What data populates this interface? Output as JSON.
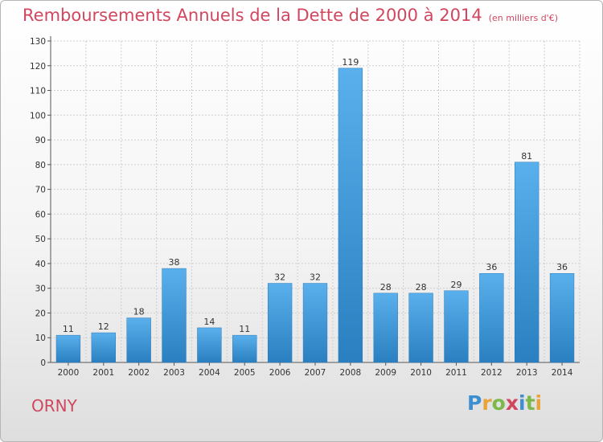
{
  "header": {
    "title": "Remboursements Annuels de la Dette de 2000 à 2014",
    "unit": "(en milliers d'€)"
  },
  "commune": "ORNY",
  "logo": {
    "letters": [
      "P",
      "r",
      "o",
      "x",
      "i",
      "t",
      "i"
    ],
    "colors": [
      "#3c8fd0",
      "#e8a33a",
      "#7cb84a",
      "#d0475f",
      "#3c8fd0",
      "#7cb84a",
      "#e8a33a"
    ]
  },
  "chart_data": {
    "type": "bar",
    "title": "Remboursements Annuels de la Dette de 2000 à 2014",
    "categories": [
      "2000",
      "2001",
      "2002",
      "2003",
      "2004",
      "2005",
      "2006",
      "2007",
      "2008",
      "2009",
      "2010",
      "2011",
      "2012",
      "2013",
      "2014"
    ],
    "values": [
      11,
      12,
      18,
      38,
      14,
      11,
      32,
      32,
      119,
      28,
      28,
      29,
      36,
      81,
      36
    ],
    "yticks": [
      0,
      10,
      20,
      30,
      40,
      50,
      60,
      70,
      80,
      90,
      100,
      110,
      120,
      130
    ],
    "ylim": [
      0,
      130
    ],
    "grid": true,
    "bar_color": "#3d94d6",
    "xlabel": "",
    "ylabel": ""
  }
}
